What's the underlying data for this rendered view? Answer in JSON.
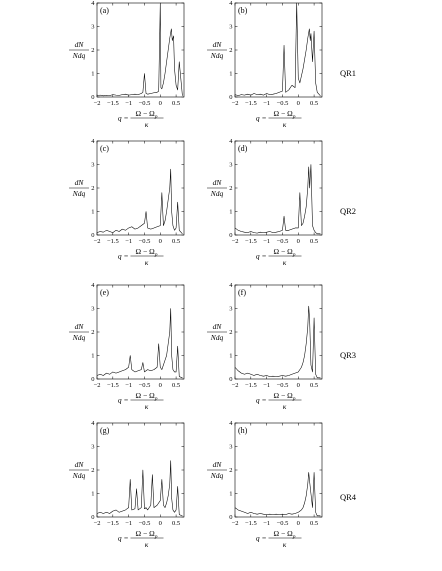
{
  "figure": {
    "row_labels": [
      "QR1",
      "QR2",
      "QR3",
      "QR4"
    ],
    "ylabel": {
      "num": "dN",
      "den": "Ndq"
    },
    "xlabel": {
      "prefix": "q =",
      "num": "Ω − Ω",
      "sub": "p",
      "den": "κ"
    },
    "xticks": [
      "−2",
      "−1.5",
      "−1",
      "−0.5",
      "0",
      "0.5"
    ],
    "yticks": [
      "0",
      "1",
      "2",
      "3",
      "4"
    ]
  },
  "chart_data": [
    {
      "type": "line",
      "panel": "(a)",
      "row": "QR1",
      "xlim": [
        -2,
        0.75
      ],
      "ylim": [
        0,
        4
      ],
      "x": [
        -2,
        -1.9,
        -1.8,
        -1.7,
        -1.6,
        -1.5,
        -1.4,
        -1.3,
        -1.2,
        -1.1,
        -1.0,
        -0.9,
        -0.8,
        -0.7,
        -0.6,
        -0.55,
        -0.5,
        -0.45,
        -0.4,
        -0.3,
        -0.2,
        -0.1,
        -0.05,
        0.0,
        0.02,
        0.05,
        0.1,
        0.15,
        0.2,
        0.25,
        0.3,
        0.35,
        0.38,
        0.42,
        0.45,
        0.5,
        0.55,
        0.6,
        0.7
      ],
      "y": [
        0.06,
        0.08,
        0.05,
        0.07,
        0.06,
        0.1,
        0.08,
        0.07,
        0.1,
        0.12,
        0.08,
        0.1,
        0.12,
        0.1,
        0.15,
        0.2,
        1.0,
        0.15,
        0.12,
        0.15,
        0.18,
        0.2,
        0.25,
        4.0,
        0.4,
        0.35,
        0.6,
        1.0,
        1.5,
        2.0,
        2.5,
        2.9,
        2.4,
        2.6,
        1.2,
        0.5,
        0.3,
        1.5,
        0.05
      ]
    },
    {
      "type": "line",
      "panel": "(b)",
      "row": "QR1",
      "xlim": [
        -2,
        0.75
      ],
      "ylim": [
        0,
        4
      ],
      "x": [
        -2,
        -1.9,
        -1.8,
        -1.7,
        -1.6,
        -1.5,
        -1.4,
        -1.3,
        -1.2,
        -1.1,
        -1.0,
        -0.9,
        -0.8,
        -0.7,
        -0.6,
        -0.5,
        -0.45,
        -0.4,
        -0.3,
        -0.2,
        -0.1,
        -0.05,
        0.0,
        0.05,
        0.1,
        0.15,
        0.2,
        0.25,
        0.3,
        0.35,
        0.38,
        0.4,
        0.45,
        0.5,
        0.55,
        0.6,
        0.7
      ],
      "y": [
        0.1,
        0.06,
        0.1,
        0.08,
        0.12,
        0.08,
        0.15,
        0.1,
        0.12,
        0.08,
        0.15,
        0.1,
        0.12,
        0.15,
        0.2,
        0.25,
        2.2,
        0.2,
        0.3,
        0.5,
        0.4,
        4.0,
        0.8,
        0.6,
        0.9,
        1.2,
        1.6,
        2.0,
        2.5,
        2.9,
        2.4,
        2.7,
        1.5,
        2.8,
        0.6,
        0.2,
        0.05
      ]
    },
    {
      "type": "line",
      "panel": "(c)",
      "row": "QR2",
      "xlim": [
        -2,
        0.75
      ],
      "ylim": [
        0,
        4
      ],
      "x": [
        -2,
        -1.9,
        -1.8,
        -1.7,
        -1.6,
        -1.5,
        -1.4,
        -1.3,
        -1.2,
        -1.1,
        -1.0,
        -0.9,
        -0.8,
        -0.7,
        -0.6,
        -0.5,
        -0.45,
        -0.4,
        -0.3,
        -0.2,
        -0.1,
        0.0,
        0.05,
        0.1,
        0.15,
        0.2,
        0.25,
        0.3,
        0.33,
        0.36,
        0.4,
        0.45,
        0.5,
        0.55,
        0.6,
        0.7
      ],
      "y": [
        0.1,
        0.15,
        0.12,
        0.2,
        0.15,
        0.1,
        0.2,
        0.15,
        0.25,
        0.2,
        0.3,
        0.35,
        0.25,
        0.3,
        0.4,
        0.5,
        1.0,
        0.3,
        0.25,
        0.3,
        0.35,
        0.4,
        1.8,
        0.4,
        0.6,
        1.0,
        1.5,
        2.0,
        2.8,
        1.0,
        0.4,
        0.2,
        0.3,
        1.4,
        0.2,
        0.05
      ]
    },
    {
      "type": "line",
      "panel": "(d)",
      "row": "QR2",
      "xlim": [
        -2,
        0.75
      ],
      "ylim": [
        0,
        4
      ],
      "x": [
        -2,
        -1.9,
        -1.8,
        -1.7,
        -1.6,
        -1.5,
        -1.4,
        -1.3,
        -1.2,
        -1.1,
        -1.0,
        -0.9,
        -0.8,
        -0.7,
        -0.6,
        -0.5,
        -0.45,
        -0.4,
        -0.3,
        -0.2,
        -0.1,
        0.0,
        0.05,
        0.1,
        0.15,
        0.2,
        0.25,
        0.3,
        0.33,
        0.36,
        0.4,
        0.45,
        0.5,
        0.55,
        0.6,
        0.7
      ],
      "y": [
        0.3,
        0.2,
        0.15,
        0.12,
        0.1,
        0.15,
        0.1,
        0.08,
        0.12,
        0.1,
        0.12,
        0.15,
        0.1,
        0.12,
        0.15,
        0.2,
        0.8,
        0.2,
        0.2,
        0.25,
        0.3,
        0.3,
        1.8,
        0.4,
        0.5,
        0.8,
        1.2,
        2.0,
        2.9,
        2.0,
        3.0,
        0.4,
        0.2,
        0.1,
        0.05,
        0.05
      ]
    },
    {
      "type": "line",
      "panel": "(e)",
      "row": "QR3",
      "xlim": [
        -2,
        0.75
      ],
      "ylim": [
        0,
        4
      ],
      "x": [
        -2,
        -1.9,
        -1.8,
        -1.7,
        -1.6,
        -1.5,
        -1.4,
        -1.3,
        -1.2,
        -1.1,
        -1.0,
        -0.95,
        -0.9,
        -0.8,
        -0.7,
        -0.6,
        -0.55,
        -0.5,
        -0.45,
        -0.4,
        -0.3,
        -0.2,
        -0.1,
        -0.05,
        0.0,
        0.05,
        0.1,
        0.15,
        0.2,
        0.25,
        0.3,
        0.33,
        0.36,
        0.4,
        0.45,
        0.5,
        0.55,
        0.6,
        0.7
      ],
      "y": [
        0.15,
        0.2,
        0.15,
        0.25,
        0.2,
        0.3,
        0.25,
        0.3,
        0.35,
        0.4,
        0.5,
        1.0,
        0.4,
        0.3,
        0.35,
        0.4,
        0.7,
        0.3,
        0.35,
        0.4,
        0.35,
        0.4,
        0.5,
        1.5,
        0.5,
        0.4,
        0.6,
        0.8,
        1.0,
        1.5,
        2.0,
        3.0,
        1.0,
        0.4,
        0.3,
        0.3,
        1.4,
        0.1,
        0.05
      ]
    },
    {
      "type": "line",
      "panel": "(f)",
      "row": "QR3",
      "xlim": [
        -2,
        0.75
      ],
      "ylim": [
        0,
        4
      ],
      "x": [
        -2,
        -1.9,
        -1.8,
        -1.7,
        -1.6,
        -1.5,
        -1.4,
        -1.3,
        -1.2,
        -1.1,
        -1.0,
        -0.9,
        -0.8,
        -0.7,
        -0.6,
        -0.5,
        -0.4,
        -0.3,
        -0.2,
        -0.1,
        0.0,
        0.05,
        0.1,
        0.15,
        0.2,
        0.25,
        0.3,
        0.33,
        0.36,
        0.4,
        0.45,
        0.5,
        0.55,
        0.6,
        0.7
      ],
      "y": [
        0.5,
        0.35,
        0.25,
        0.2,
        0.25,
        0.2,
        0.15,
        0.2,
        0.15,
        0.12,
        0.15,
        0.1,
        0.12,
        0.1,
        0.12,
        0.15,
        0.12,
        0.15,
        0.2,
        0.25,
        0.3,
        0.4,
        0.5,
        0.7,
        1.0,
        1.5,
        2.2,
        3.1,
        2.5,
        0.6,
        0.3,
        2.6,
        0.2,
        0.05,
        0.05
      ]
    },
    {
      "type": "line",
      "panel": "(g)",
      "row": "QR4",
      "xlim": [
        -2,
        0.75
      ],
      "ylim": [
        0,
        4
      ],
      "x": [
        -2,
        -1.9,
        -1.8,
        -1.7,
        -1.6,
        -1.5,
        -1.4,
        -1.3,
        -1.2,
        -1.1,
        -1.0,
        -0.95,
        -0.9,
        -0.8,
        -0.75,
        -0.7,
        -0.6,
        -0.55,
        -0.5,
        -0.45,
        -0.4,
        -0.3,
        -0.25,
        -0.2,
        -0.1,
        0.0,
        0.05,
        0.1,
        0.15,
        0.2,
        0.25,
        0.3,
        0.33,
        0.36,
        0.4,
        0.45,
        0.5,
        0.55,
        0.6,
        0.7
      ],
      "y": [
        0.15,
        0.2,
        0.15,
        0.2,
        0.15,
        0.25,
        0.3,
        0.2,
        0.25,
        0.3,
        0.4,
        1.6,
        0.3,
        0.35,
        1.2,
        0.3,
        0.4,
        2.0,
        0.35,
        0.4,
        0.3,
        0.5,
        1.8,
        0.4,
        0.5,
        0.7,
        1.6,
        0.5,
        0.4,
        0.6,
        0.9,
        1.4,
        2.4,
        0.8,
        0.3,
        0.2,
        0.3,
        1.3,
        0.1,
        0.05
      ]
    },
    {
      "type": "line",
      "panel": "(h)",
      "row": "QR4",
      "xlim": [
        -2,
        0.75
      ],
      "ylim": [
        0,
        4
      ],
      "x": [
        -2,
        -1.9,
        -1.8,
        -1.7,
        -1.6,
        -1.5,
        -1.4,
        -1.3,
        -1.2,
        -1.1,
        -1.0,
        -0.9,
        -0.8,
        -0.7,
        -0.6,
        -0.5,
        -0.4,
        -0.3,
        -0.2,
        -0.1,
        0.0,
        0.05,
        0.1,
        0.15,
        0.2,
        0.25,
        0.3,
        0.33,
        0.36,
        0.4,
        0.45,
        0.5,
        0.55,
        0.6,
        0.7
      ],
      "y": [
        0.4,
        0.3,
        0.25,
        0.2,
        0.15,
        0.2,
        0.15,
        0.12,
        0.15,
        0.12,
        0.1,
        0.12,
        0.1,
        0.12,
        0.1,
        0.12,
        0.1,
        0.15,
        0.12,
        0.15,
        0.2,
        0.25,
        0.3,
        0.4,
        0.6,
        0.9,
        1.4,
        1.9,
        1.5,
        1.0,
        0.4,
        1.9,
        0.2,
        0.05,
        0.05
      ]
    }
  ]
}
